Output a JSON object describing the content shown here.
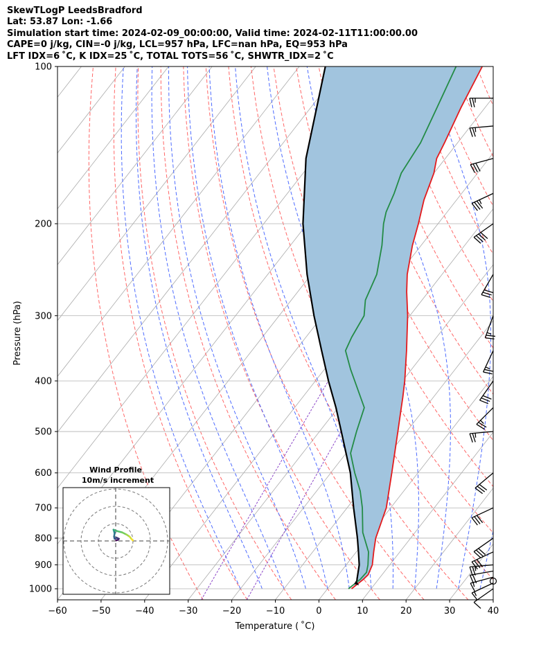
{
  "header": {
    "line1": "SkewTLogP LeedsBradford",
    "line2": "Lat: 53.87   Lon: -1.66",
    "line3": "Simulation start time: 2024-02-09_00:00:00, Valid time: 2024-02-11T11:00:00.00",
    "line4": "CAPE=0 j/kg, CIN=-0 j/kg, LCL=957 hPa, LFC=nan hPa, EQ=953 hPa",
    "line5": "LFT IDX=6 ˚C, K IDX=25 ˚C, TOTAL TOTS=56 ˚C, SHWTR_IDX=2 ˚C"
  },
  "chart_data": {
    "type": "line",
    "chart_kind": "skew-T log-P diagram",
    "xlabel": "Temperature ( ˚C)",
    "ylabel": "Pressure (hPa)",
    "xlim": [
      -60,
      40
    ],
    "ylim": [
      1050,
      100
    ],
    "y_scale": "log",
    "x_ticks": [
      "−60",
      "−50",
      "−40",
      "−30",
      "−20",
      "−10",
      "0",
      "10",
      "20",
      "30",
      "40"
    ],
    "y_ticks": [
      "100",
      "200",
      "300",
      "400",
      "500",
      "600",
      "700",
      "800",
      "900",
      "1000"
    ],
    "x_tick_values": [
      -60,
      -50,
      -40,
      -30,
      -20,
      -10,
      0,
      10,
      20,
      30,
      40
    ],
    "y_tick_values": [
      100,
      200,
      300,
      400,
      500,
      600,
      700,
      800,
      900,
      1000
    ],
    "grid": true,
    "skew_isotherm_spacing_c": 10,
    "series": [
      {
        "role": "temperature",
        "color": "#e31a1c",
        "points": [
          [
            1000,
            5.5
          ],
          [
            960,
            6.5
          ],
          [
            940,
            6.8
          ],
          [
            900,
            6.0
          ],
          [
            850,
            4.0
          ],
          [
            800,
            2.0
          ],
          [
            700,
            -1.0
          ],
          [
            600,
            -6.0
          ],
          [
            500,
            -12.0
          ],
          [
            450,
            -15.5
          ],
          [
            430,
            -17.0
          ],
          [
            400,
            -19.5
          ],
          [
            350,
            -24.5
          ],
          [
            300,
            -30.5
          ],
          [
            270,
            -35.0
          ],
          [
            250,
            -38.0
          ],
          [
            220,
            -42.0
          ],
          [
            200,
            -44.5
          ],
          [
            180,
            -47.5
          ],
          [
            160,
            -50.0
          ],
          [
            150,
            -52.0
          ],
          [
            140,
            -53.0
          ],
          [
            120,
            -55.5
          ],
          [
            100,
            -58.0
          ]
        ]
      },
      {
        "role": "dewpoint",
        "color": "#238b45",
        "points": [
          [
            1000,
            4.8
          ],
          [
            960,
            5.8
          ],
          [
            930,
            6.0
          ],
          [
            900,
            5.0
          ],
          [
            850,
            2.8
          ],
          [
            780,
            -2.0
          ],
          [
            700,
            -6.5
          ],
          [
            650,
            -10.0
          ],
          [
            600,
            -14.5
          ],
          [
            550,
            -19.0
          ],
          [
            500,
            -21.5
          ],
          [
            450,
            -24.0
          ],
          [
            380,
            -34.0
          ],
          [
            350,
            -38.5
          ],
          [
            330,
            -39.5
          ],
          [
            300,
            -40.5
          ],
          [
            280,
            -43.0
          ],
          [
            250,
            -45.0
          ],
          [
            220,
            -49.0
          ],
          [
            200,
            -52.5
          ],
          [
            190,
            -54.0
          ],
          [
            175,
            -55.5
          ],
          [
            160,
            -57.5
          ],
          [
            140,
            -58.5
          ],
          [
            120,
            -61.0
          ],
          [
            100,
            -64.0
          ]
        ]
      },
      {
        "role": "parcel",
        "color": "#000000",
        "points": [
          [
            970,
            5.5
          ],
          [
            957,
            5.0
          ],
          [
            900,
            3.0
          ],
          [
            850,
            0.5
          ],
          [
            800,
            -2.2
          ],
          [
            700,
            -8.5
          ],
          [
            600,
            -15.5
          ],
          [
            500,
            -25.0
          ],
          [
            450,
            -30.5
          ],
          [
            400,
            -37.0
          ],
          [
            350,
            -44.0
          ],
          [
            300,
            -52.0
          ],
          [
            250,
            -61.0
          ],
          [
            200,
            -71.0
          ],
          [
            150,
            -82.0
          ],
          [
            100,
            -94.0
          ]
        ]
      }
    ],
    "wind_barbs": [
      {
        "p": 1000,
        "speed_kt": 10,
        "dir_deg": 235
      },
      {
        "p": 975,
        "speed_kt": 15,
        "dir_deg": 245
      },
      {
        "p": 950,
        "speed_kt": 15,
        "dir_deg": 255
      },
      {
        "p": 925,
        "speed_kt": 20,
        "dir_deg": 260
      },
      {
        "p": 900,
        "speed_kt": 25,
        "dir_deg": 265
      },
      {
        "p": 850,
        "speed_kt": 30,
        "dir_deg": 245
      },
      {
        "p": 800,
        "speed_kt": 30,
        "dir_deg": 235
      },
      {
        "p": 700,
        "speed_kt": 30,
        "dir_deg": 245
      },
      {
        "p": 600,
        "speed_kt": 30,
        "dir_deg": 230
      },
      {
        "p": 500,
        "speed_kt": 25,
        "dir_deg": 265
      },
      {
        "p": 450,
        "speed_kt": 25,
        "dir_deg": 225
      },
      {
        "p": 400,
        "speed_kt": 30,
        "dir_deg": 215
      },
      {
        "p": 350,
        "speed_kt": 25,
        "dir_deg": 205
      },
      {
        "p": 300,
        "speed_kt": 25,
        "dir_deg": 200
      },
      {
        "p": 250,
        "speed_kt": 30,
        "dir_deg": 210
      },
      {
        "p": 200,
        "speed_kt": 40,
        "dir_deg": 235
      },
      {
        "p": 175,
        "speed_kt": 35,
        "dir_deg": 245
      },
      {
        "p": 150,
        "speed_kt": 30,
        "dir_deg": 255
      },
      {
        "p": 130,
        "speed_kt": 25,
        "dir_deg": 265
      },
      {
        "p": 115,
        "speed_kt": 25,
        "dir_deg": 270
      }
    ],
    "hodograph": {
      "title": "Wind Profile",
      "subtitle": "10m/s increment",
      "ring_increment_ms": 10,
      "points": [
        [
          0.5,
          0.5
        ],
        [
          2.0,
          1.0
        ],
        [
          3.0,
          2.0
        ],
        [
          1.0,
          3.0
        ],
        [
          -1.0,
          2.0
        ],
        [
          -1.5,
          4.0
        ],
        [
          -1.0,
          7.0
        ],
        [
          -1.5,
          9.0
        ],
        [
          -2.0,
          10.5
        ],
        [
          -1.0,
          10.0
        ],
        [
          2.0,
          9.0
        ],
        [
          6.0,
          8.0
        ],
        [
          10.0,
          6.0
        ],
        [
          13.0,
          4.0
        ],
        [
          15.0,
          1.5
        ],
        [
          16.0,
          0.5
        ]
      ]
    },
    "colors": {
      "dry_adiabat": "#ff6666",
      "moist_adiabat": "#4d6bff",
      "mixing_ratio": "#8b46c8",
      "isotherm": "#aaaaaa",
      "shading": "#a1c4de"
    }
  }
}
